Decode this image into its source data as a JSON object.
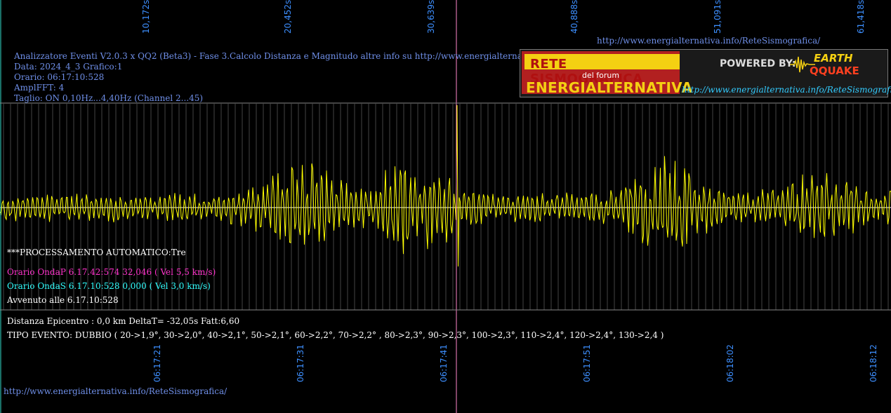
{
  "header": {
    "line1": "Analizzatore Eventi V2.0.3 x QQ2 (Beta3) - Fase 3.Calcolo Distanza e Magnitudo altre info su http://www.energialternativa.info/ReteSism",
    "line2": "Data: 2024_4_3 Grafico:1",
    "line3": "Orario: 06:17:10:528",
    "line4": "AmplFFT: 4",
    "line5": "Taglio: ON 0,10Hz...4,40Hz       (Channel 2...45)"
  },
  "top_url": "http://www.energialternativa.info/ReteSismografica/",
  "bottom_url": "http://www.energialternativa.info/ReteSismografica/",
  "logo": {
    "title": "RETE SISMOGRAFICA",
    "subtitle": "del forum",
    "brand": "ENERGIALTERNATIVA",
    "powered": "POWERED BY:",
    "earth": "EARTH",
    "qquake": "QQUAKE",
    "url": "http://www.energialternativa.info/ReteSismografica"
  },
  "seconds_ticks": [
    "10,172s",
    "20,452s",
    "30,639s",
    "40,888s",
    "51,091s",
    "61,418s"
  ],
  "time_ticks": [
    "06:17:21",
    "06:17:31",
    "06:17:41",
    "06:17:51",
    "06:18:02",
    "06:18:12"
  ],
  "info": {
    "processing": "***PROCESSAMENTO AUTOMATICO:Tre",
    "onda_p": "Orario OndaP 6.17.42:574  32,046 ( Vel 5,5 km/s)",
    "onda_s": "Orario OndaS 6.17.10:528  0,000 ( Vel 3,0 km/s)",
    "avvenuto": "Avvenuto alle 6.17.10:528",
    "distanza": "Distanza Epicentro : 0,0 km DeltaT= -32,05s  Fatt:6,60",
    "tipo": "TIPO EVENTO: DUBBIO ( 20->1,9°, 30->2,0°, 40->2,1°, 50->2,1°, 60->2,2°, 70->2,2° , 80->2,3°, 90->2,3°, 100->2,3°, 110->2,4°, 120->2,4°, 130->2,4 )"
  },
  "colors": {
    "background": "#000000",
    "trace": "#ffff00",
    "grid": "#555555",
    "marker": "#ff88cc",
    "tick_text": "#3d8fff",
    "header_text": "#6f8fe8"
  }
}
